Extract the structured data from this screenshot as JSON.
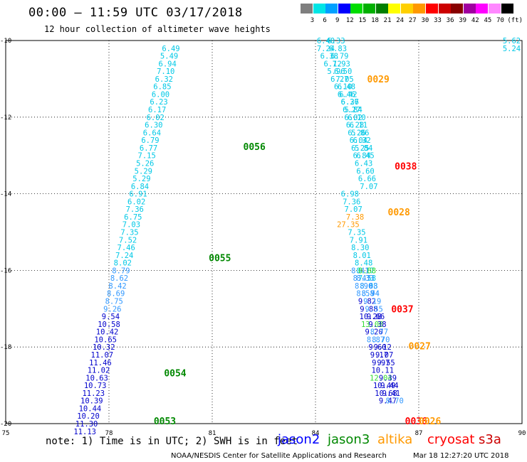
{
  "header": {
    "title": "00:00 – 11:59 UTC 03/17/2018",
    "subtitle": "12 hour collection of altimeter wave heights"
  },
  "legend": {
    "unit": "(ft)",
    "bins": [
      {
        "label": "3",
        "color": "#7f7f7f"
      },
      {
        "label": "6",
        "color": "#00e5e5"
      },
      {
        "label": "9",
        "color": "#00a0ff"
      },
      {
        "label": "12",
        "color": "#0000ff"
      },
      {
        "label": "15",
        "color": "#00dd00"
      },
      {
        "label": "18",
        "color": "#00b000"
      },
      {
        "label": "21",
        "color": "#007f00"
      },
      {
        "label": "24",
        "color": "#ffff00"
      },
      {
        "label": "27",
        "color": "#ffd000"
      },
      {
        "label": "30",
        "color": "#ff9900"
      },
      {
        "label": "33",
        "color": "#ff0000"
      },
      {
        "label": "36",
        "color": "#cc0000"
      },
      {
        "label": "39",
        "color": "#880000"
      },
      {
        "label": "42",
        "color": "#a000a0"
      },
      {
        "label": "45",
        "color": "#ff00ff"
      },
      {
        "label": "70",
        "color": "#ff88ff"
      },
      {
        "label": "",
        "color": "#000000"
      }
    ]
  },
  "axes": {
    "x_ticks": [
      "75",
      "78",
      "81",
      "84",
      "87",
      "90"
    ],
    "y_ticks": [
      "-10",
      "-12",
      "-14",
      "-16",
      "-18",
      "-20"
    ],
    "lon_range": [
      75,
      90
    ],
    "lat_range": [
      -20,
      -10
    ]
  },
  "colors": {
    "cyan": "#00c8e6",
    "sky": "#3399ff",
    "blue": "#0000cc",
    "green": "#008800",
    "lime": "#33dd33",
    "orange": "#ff9900",
    "red": "#ff0000"
  },
  "tracks": [
    {
      "label": {
        "text": "0056",
        "lon": 81.9,
        "lat": -12.76,
        "color": "green"
      },
      "points": [
        {
          "lon": 79.8,
          "lat": -10.2,
          "v": "6.49",
          "c": "cyan"
        },
        {
          "lon": 79.75,
          "lat": -10.4,
          "v": "5.49",
          "c": "cyan"
        },
        {
          "lon": 79.7,
          "lat": -10.6,
          "v": "6.94",
          "c": "cyan"
        },
        {
          "lon": 79.65,
          "lat": -10.8,
          "v": "7.10",
          "c": "cyan"
        },
        {
          "lon": 79.6,
          "lat": -11.0,
          "v": "6.32",
          "c": "cyan"
        },
        {
          "lon": 79.55,
          "lat": -11.2,
          "v": "6.85",
          "c": "cyan"
        },
        {
          "lon": 79.5,
          "lat": -11.4,
          "v": "6.00",
          "c": "cyan"
        },
        {
          "lon": 79.45,
          "lat": -11.6,
          "v": "6.23",
          "c": "cyan"
        },
        {
          "lon": 79.4,
          "lat": -11.8,
          "v": "6.17",
          "c": "cyan"
        },
        {
          "lon": 79.35,
          "lat": -12.0,
          "v": "6.02",
          "c": "cyan"
        },
        {
          "lon": 79.3,
          "lat": -12.2,
          "v": "6.30",
          "c": "cyan"
        },
        {
          "lon": 79.25,
          "lat": -12.4,
          "v": "6.64",
          "c": "cyan"
        },
        {
          "lon": 79.2,
          "lat": -12.6,
          "v": "6.79",
          "c": "cyan"
        },
        {
          "lon": 79.15,
          "lat": -12.8,
          "v": "6.77",
          "c": "cyan"
        },
        {
          "lon": 79.1,
          "lat": -13.0,
          "v": "7.15",
          "c": "cyan"
        },
        {
          "lon": 79.05,
          "lat": -13.2,
          "v": "5.26",
          "c": "cyan"
        },
        {
          "lon": 79.0,
          "lat": -13.4,
          "v": "5.29",
          "c": "cyan"
        },
        {
          "lon": 78.95,
          "lat": -13.6,
          "v": "5.29",
          "c": "cyan"
        },
        {
          "lon": 78.9,
          "lat": -13.8,
          "v": "6.84",
          "c": "cyan"
        },
        {
          "lon": 78.85,
          "lat": -14.0,
          "v": "6.91",
          "c": "cyan"
        },
        {
          "lon": 78.8,
          "lat": -14.2,
          "v": "6.02",
          "c": "cyan"
        },
        {
          "lon": 78.75,
          "lat": -14.4,
          "v": "7.36",
          "c": "cyan"
        },
        {
          "lon": 78.7,
          "lat": -14.6,
          "v": "6.75",
          "c": "cyan"
        },
        {
          "lon": 78.65,
          "lat": -14.8,
          "v": "7.03",
          "c": "cyan"
        },
        {
          "lon": 78.6,
          "lat": -15.0,
          "v": "7.35",
          "c": "cyan"
        },
        {
          "lon": 78.55,
          "lat": -15.2,
          "v": "7.52",
          "c": "cyan"
        },
        {
          "lon": 78.5,
          "lat": -15.4,
          "v": "7.46",
          "c": "cyan"
        },
        {
          "lon": 78.45,
          "lat": -15.6,
          "v": "7.24",
          "c": "cyan"
        },
        {
          "lon": 78.4,
          "lat": -15.8,
          "v": "8.02",
          "c": "cyan"
        },
        {
          "lon": 78.35,
          "lat": -16.0,
          "v": "8.79",
          "c": "sky"
        },
        {
          "lon": 78.3,
          "lat": -16.2,
          "v": "8.62",
          "c": "sky"
        },
        {
          "lon": 78.25,
          "lat": -16.4,
          "v": "8.42",
          "c": "sky"
        },
        {
          "lon": 78.2,
          "lat": -16.6,
          "v": "8.69",
          "c": "sky"
        },
        {
          "lon": 78.15,
          "lat": -16.8,
          "v": "8.75",
          "c": "sky"
        },
        {
          "lon": 78.1,
          "lat": -17.0,
          "v": "9.26",
          "c": "sky"
        },
        {
          "lon": 78.05,
          "lat": -17.2,
          "v": "9.54",
          "c": "blue"
        },
        {
          "lon": 78.0,
          "lat": -17.4,
          "v": "10.58",
          "c": "blue"
        },
        {
          "lon": 77.95,
          "lat": -17.6,
          "v": "10.42",
          "c": "blue"
        },
        {
          "lon": 77.9,
          "lat": -17.8,
          "v": "10.65",
          "c": "blue"
        },
        {
          "lon": 77.85,
          "lat": -18.0,
          "v": "10.32",
          "c": "blue"
        }
      ]
    },
    {
      "label": {
        "text": "0055",
        "lon": 80.9,
        "lat": -15.67,
        "color": "green"
      },
      "points": []
    },
    {
      "label": {
        "text": "0054",
        "lon": 79.6,
        "lat": -18.67,
        "color": "green"
      },
      "points": [
        {
          "lon": 77.8,
          "lat": -18.2,
          "v": "11.07",
          "c": "blue"
        },
        {
          "lon": 77.75,
          "lat": -18.4,
          "v": "11.46",
          "c": "blue"
        },
        {
          "lon": 77.7,
          "lat": -18.6,
          "v": "11.02",
          "c": "blue"
        },
        {
          "lon": 77.65,
          "lat": -18.8,
          "v": "10.63",
          "c": "blue"
        },
        {
          "lon": 77.6,
          "lat": -19.0,
          "v": "10.73",
          "c": "blue"
        },
        {
          "lon": 77.55,
          "lat": -19.2,
          "v": "11.23",
          "c": "blue"
        },
        {
          "lon": 77.5,
          "lat": -19.4,
          "v": "10.39",
          "c": "blue"
        },
        {
          "lon": 77.45,
          "lat": -19.6,
          "v": "10.44",
          "c": "blue"
        },
        {
          "lon": 77.4,
          "lat": -19.8,
          "v": "10.20",
          "c": "blue"
        },
        {
          "lon": 77.35,
          "lat": -20.0,
          "v": "11.30",
          "c": "blue"
        },
        {
          "lon": 77.3,
          "lat": -20.2,
          "v": "11.13",
          "c": "blue"
        }
      ]
    },
    {
      "label": {
        "text": "0053",
        "lon": 79.3,
        "lat": -19.93,
        "color": "green"
      },
      "points": []
    },
    {
      "label": {
        "text": "0029",
        "lon": 85.5,
        "lat": -11.0,
        "color": "orange"
      },
      "points": [
        {
          "lon": 84.3,
          "lat": -10.0,
          "v": "6.40",
          "c": "cyan"
        },
        {
          "lon": 84.3,
          "lat": -10.2,
          "v": "7.24",
          "c": "cyan"
        },
        {
          "lon": 84.4,
          "lat": -10.4,
          "v": "6.38",
          "c": "cyan"
        },
        {
          "lon": 84.5,
          "lat": -10.6,
          "v": "6.12",
          "c": "cyan"
        },
        {
          "lon": 84.6,
          "lat": -10.8,
          "v": "5.96",
          "c": "cyan"
        },
        {
          "lon": 84.7,
          "lat": -11.0,
          "v": "6.27",
          "c": "cyan"
        },
        {
          "lon": 84.8,
          "lat": -11.2,
          "v": "6.10",
          "c": "cyan"
        },
        {
          "lon": 84.9,
          "lat": -11.4,
          "v": "6.46",
          "c": "cyan"
        },
        {
          "lon": 85.0,
          "lat": -11.6,
          "v": "6.26",
          "c": "cyan"
        },
        {
          "lon": 85.1,
          "lat": -11.8,
          "v": "5.84",
          "c": "cyan"
        },
        {
          "lon": 85.2,
          "lat": -12.0,
          "v": "6.10",
          "c": "cyan"
        },
        {
          "lon": 85.25,
          "lat": -12.2,
          "v": "6.11",
          "c": "cyan"
        },
        {
          "lon": 85.3,
          "lat": -12.4,
          "v": "5.86",
          "c": "cyan"
        },
        {
          "lon": 85.35,
          "lat": -12.6,
          "v": "6.32",
          "c": "cyan"
        },
        {
          "lon": 85.4,
          "lat": -12.8,
          "v": "5.84",
          "c": "cyan"
        },
        {
          "lon": 85.45,
          "lat": -13.0,
          "v": "6.45",
          "c": "cyan"
        }
      ]
    },
    {
      "label": {
        "text": "0038",
        "lon": 86.3,
        "lat": -13.27,
        "color": "red"
      },
      "points": [
        {
          "lon": 84.6,
          "lat": -10.0,
          "v": "6.33",
          "c": "cyan"
        },
        {
          "lon": 84.65,
          "lat": -10.2,
          "v": "6.83",
          "c": "cyan"
        },
        {
          "lon": 84.7,
          "lat": -10.4,
          "v": "6.79",
          "c": "cyan"
        },
        {
          "lon": 84.75,
          "lat": -10.6,
          "v": "7.93",
          "c": "cyan"
        },
        {
          "lon": 84.8,
          "lat": -10.8,
          "v": "6.50",
          "c": "cyan"
        },
        {
          "lon": 84.85,
          "lat": -11.0,
          "v": "7.05",
          "c": "cyan"
        },
        {
          "lon": 84.9,
          "lat": -11.2,
          "v": "6.48",
          "c": "cyan"
        },
        {
          "lon": 84.95,
          "lat": -11.4,
          "v": "6.42",
          "c": "cyan"
        },
        {
          "lon": 85.0,
          "lat": -11.6,
          "v": "6.37",
          "c": "cyan"
        },
        {
          "lon": 85.05,
          "lat": -11.8,
          "v": "6.27",
          "c": "cyan"
        },
        {
          "lon": 85.1,
          "lat": -12.0,
          "v": "6.02",
          "c": "cyan"
        },
        {
          "lon": 85.15,
          "lat": -12.2,
          "v": "6.28",
          "c": "cyan"
        },
        {
          "lon": 85.2,
          "lat": -12.4,
          "v": "6.26",
          "c": "cyan"
        },
        {
          "lon": 85.25,
          "lat": -12.6,
          "v": "6.04",
          "c": "cyan"
        },
        {
          "lon": 85.3,
          "lat": -12.8,
          "v": "6.25",
          "c": "cyan"
        },
        {
          "lon": 85.35,
          "lat": -13.0,
          "v": "6.84",
          "c": "cyan"
        },
        {
          "lon": 85.4,
          "lat": -13.2,
          "v": "6.43",
          "c": "cyan"
        },
        {
          "lon": 85.45,
          "lat": -13.4,
          "v": "6.60",
          "c": "cyan"
        },
        {
          "lon": 85.5,
          "lat": -13.6,
          "v": "6.66",
          "c": "cyan"
        },
        {
          "lon": 85.55,
          "lat": -13.8,
          "v": "7.07",
          "c": "cyan"
        }
      ]
    },
    {
      "label": {
        "text": "0028",
        "lon": 86.1,
        "lat": -14.47,
        "color": "orange"
      },
      "points": [
        {
          "lon": 85.0,
          "lat": -14.0,
          "v": "6.98",
          "c": "cyan"
        },
        {
          "lon": 85.05,
          "lat": -14.2,
          "v": "7.36",
          "c": "cyan"
        },
        {
          "lon": 85.1,
          "lat": -14.4,
          "v": "7.07",
          "c": "cyan"
        },
        {
          "lon": 85.15,
          "lat": -14.6,
          "v": "7.38",
          "c": "orange"
        },
        {
          "lon": 84.95,
          "lat": -14.8,
          "v": "27.35",
          "c": "orange"
        },
        {
          "lon": 85.2,
          "lat": -15.0,
          "v": "7.35",
          "c": "cyan"
        },
        {
          "lon": 85.25,
          "lat": -15.2,
          "v": "7.91",
          "c": "cyan"
        },
        {
          "lon": 85.3,
          "lat": -15.4,
          "v": "8.30",
          "c": "cyan"
        },
        {
          "lon": 85.35,
          "lat": -15.6,
          "v": "8.01",
          "c": "cyan"
        },
        {
          "lon": 85.4,
          "lat": -15.8,
          "v": "8.48",
          "c": "cyan"
        },
        {
          "lon": 85.45,
          "lat": -16.0,
          "v": "8.17",
          "c": "cyan"
        },
        {
          "lon": 85.5,
          "lat": -16.2,
          "v": "7.58",
          "c": "cyan"
        },
        {
          "lon": 85.55,
          "lat": -16.4,
          "v": "8.03",
          "c": "cyan"
        },
        {
          "lon": 85.6,
          "lat": -16.6,
          "v": "8.74",
          "c": "sky"
        }
      ]
    },
    {
      "label": {
        "text": "0037",
        "lon": 86.2,
        "lat": -17.0,
        "color": "red"
      },
      "points": [
        {
          "lon": 85.3,
          "lat": -16.0,
          "v": "8.41",
          "c": "sky"
        },
        {
          "lon": 85.5,
          "lat": -16.0,
          "v": "8.88",
          "c": "lime"
        },
        {
          "lon": 85.35,
          "lat": -16.2,
          "v": "8.47",
          "c": "sky"
        },
        {
          "lon": 85.45,
          "lat": -16.2,
          "v": "8.33",
          "c": "sky"
        },
        {
          "lon": 85.4,
          "lat": -16.4,
          "v": "8.90",
          "c": "sky"
        },
        {
          "lon": 85.55,
          "lat": -16.4,
          "v": "8.68",
          "c": "sky"
        },
        {
          "lon": 85.45,
          "lat": -16.6,
          "v": "8.58",
          "c": "sky"
        },
        {
          "lon": 85.6,
          "lat": -16.6,
          "v": "8.94",
          "c": "sky"
        },
        {
          "lon": 85.5,
          "lat": -16.8,
          "v": "9.82",
          "c": "blue"
        },
        {
          "lon": 85.65,
          "lat": -16.8,
          "v": "9.19",
          "c": "sky"
        },
        {
          "lon": 85.55,
          "lat": -17.0,
          "v": "9.88",
          "c": "blue"
        },
        {
          "lon": 85.7,
          "lat": -17.0,
          "v": "9.55",
          "c": "sky"
        },
        {
          "lon": 85.6,
          "lat": -17.2,
          "v": "10.28",
          "c": "blue"
        },
        {
          "lon": 85.75,
          "lat": -17.2,
          "v": "9.66",
          "c": "blue"
        },
        {
          "lon": 85.65,
          "lat": -17.4,
          "v": "13.08",
          "c": "lime"
        }
      ]
    },
    {
      "label": {
        "text": "0027",
        "lon": 86.7,
        "lat": -17.97,
        "color": "orange"
      },
      "points": [
        {
          "lon": 85.8,
          "lat": -17.4,
          "v": "9.38",
          "c": "blue"
        },
        {
          "lon": 85.7,
          "lat": -17.6,
          "v": "9.20",
          "c": "blue"
        },
        {
          "lon": 85.85,
          "lat": -17.6,
          "v": "8.77",
          "c": "sky"
        },
        {
          "lon": 85.75,
          "lat": -17.8,
          "v": "8.87",
          "c": "sky"
        },
        {
          "lon": 85.9,
          "lat": -17.8,
          "v": "8.70",
          "c": "sky"
        },
        {
          "lon": 85.8,
          "lat": -18.0,
          "v": "9.60",
          "c": "blue"
        },
        {
          "lon": 85.95,
          "lat": -18.0,
          "v": "9.12",
          "c": "blue"
        },
        {
          "lon": 85.85,
          "lat": -18.2,
          "v": "9.17",
          "c": "blue"
        },
        {
          "lon": 86.0,
          "lat": -18.2,
          "v": "9.07",
          "c": "blue"
        },
        {
          "lon": 85.9,
          "lat": -18.4,
          "v": "9.97",
          "c": "blue"
        },
        {
          "lon": 86.05,
          "lat": -18.4,
          "v": "9.55",
          "c": "blue"
        },
        {
          "lon": 85.95,
          "lat": -18.6,
          "v": "10.11",
          "c": "blue"
        }
      ]
    },
    {
      "label": {
        "text": "0036",
        "lon": 86.6,
        "lat": -19.93,
        "color": "red"
      },
      "points": [
        {
          "lon": 85.9,
          "lat": -18.8,
          "v": "12.04",
          "c": "lime"
        },
        {
          "lon": 86.1,
          "lat": -18.8,
          "v": "9.39",
          "c": "blue"
        },
        {
          "lon": 86.0,
          "lat": -19.0,
          "v": "10.49",
          "c": "blue"
        },
        {
          "lon": 86.15,
          "lat": -19.0,
          "v": "9.44",
          "c": "blue"
        },
        {
          "lon": 86.05,
          "lat": -19.2,
          "v": "10.68",
          "c": "blue"
        },
        {
          "lon": 86.2,
          "lat": -19.2,
          "v": "9.41",
          "c": "blue"
        },
        {
          "lon": 86.1,
          "lat": -19.4,
          "v": "9.47",
          "c": "blue"
        },
        {
          "lon": 86.3,
          "lat": -19.4,
          "v": "8.70",
          "c": "sky"
        }
      ]
    },
    {
      "label": {
        "text": "0026",
        "lon": 87.0,
        "lat": -19.93,
        "color": "orange"
      },
      "points": [
        {
          "lon": 89.7,
          "lat": -10.0,
          "v": "5.62",
          "c": "cyan"
        },
        {
          "lon": 89.7,
          "lat": -10.2,
          "v": "5.24",
          "c": "cyan"
        }
      ]
    }
  ],
  "note": "note: 1) Time is in UTC; 2) SWH is in feet",
  "satellites": [
    {
      "name": "jason2",
      "color": "#0000ff"
    },
    {
      "name": "jason3",
      "color": "#008800"
    },
    {
      "name": "altika",
      "color": "#ff9900"
    },
    {
      "name": "cryosat",
      "color": "#ff0000"
    },
    {
      "name": "s3a",
      "color": "#cc0000"
    }
  ],
  "footer": {
    "credit": "NOAA/NESDIS Center for Satellite Applications and Research",
    "timestamp": "Mar 18 12:27:20 UTC 2018"
  }
}
